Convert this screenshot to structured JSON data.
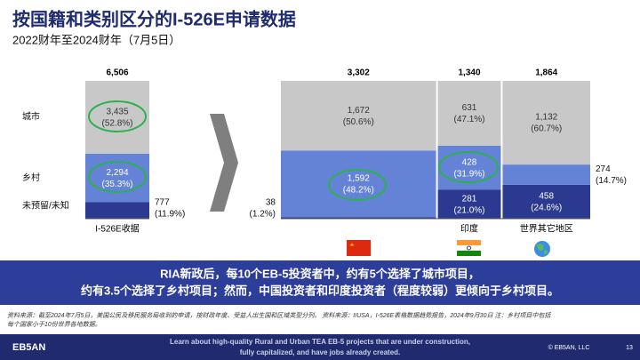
{
  "title": "按国籍和类别区分的I-526E申请数据",
  "subtitle": "2022财年至2024财年（7月5日）",
  "banner": [
    "RIA新政后，每10个EB-5投资者中，约有5个选择了城市项目，",
    "约有3.5个选择了乡村项目；然而，中国投资者和印度投资者（程度较弱）更倾向于乡村项目。"
  ],
  "footnote": [
    "资料来源：截至2024年7月5日，美国公民及移民服务局收到的申请，按财政年度、受益人出生国和区域类型分列。 资料来源：IIUSA，I-526E表格数据趋势报告，2024年9月30日 注：乡村项目中包括",
    "每个国家小于10份世界各地数据。"
  ],
  "footer": {
    "logo": "EB5AN",
    "text": [
      "Learn about high-quality Rural and Urban TEA EB-5 projects that are under construction,",
      "fully capitalized, and have jobs already created."
    ],
    "copyright": "© EB5AN, LLC",
    "page": "13"
  },
  "chart_data": [
    {
      "type": "stacked-bar",
      "categories": [
        "I-526E收据"
      ],
      "totals": [
        6506
      ],
      "total_labels": [
        "6,506"
      ],
      "series": [
        {
          "name": "城市",
          "color": "#c8c8c8",
          "values": [
            3435
          ],
          "value_labels": [
            "3,435"
          ],
          "shares": [
            52.8
          ],
          "share_labels": [
            "(52.8%)"
          ]
        },
        {
          "name": "乡村",
          "color": "#6583d6",
          "values": [
            2294
          ],
          "value_labels": [
            "2,294"
          ],
          "shares": [
            35.3
          ],
          "share_labels": [
            "(35.3%)"
          ]
        },
        {
          "name": "未预留/未知",
          "color": "#2c3990",
          "values": [
            777
          ],
          "value_labels": [
            "777"
          ],
          "shares": [
            11.9
          ],
          "share_labels": [
            "(11.9%)"
          ]
        }
      ]
    },
    {
      "type": "marimekko",
      "categories": [
        null,
        "印度",
        "世界其它地区"
      ],
      "totals": [
        3302,
        1340,
        1864
      ],
      "total_labels": [
        "3,302",
        "1,340",
        "1,864"
      ],
      "series": [
        {
          "color": "#c8c8c8",
          "values": [
            1672,
            631,
            1132
          ],
          "value_labels": [
            "1,672",
            "631",
            "1,132"
          ],
          "shares": [
            50.6,
            47.1,
            60.7
          ],
          "share_labels": [
            "(50.6%)",
            "(47.1%)",
            "(60.7%)"
          ]
        },
        {
          "color": "#6583d6",
          "values": [
            1592,
            428,
            274
          ],
          "value_labels": [
            "1,592",
            "428",
            "274"
          ],
          "shares": [
            48.2,
            31.9,
            14.7
          ],
          "share_labels": [
            "(48.2%)",
            "(31.9%)",
            "(14.7%)"
          ]
        },
        {
          "color": "#2c3990",
          "values": [
            38,
            281,
            458
          ],
          "value_labels": [
            "38",
            "281",
            "458"
          ],
          "shares": [
            1.2,
            21.0,
            24.6
          ],
          "share_labels": [
            "(1.2%)",
            "(21.0%)",
            "(24.6%)"
          ]
        }
      ]
    }
  ]
}
